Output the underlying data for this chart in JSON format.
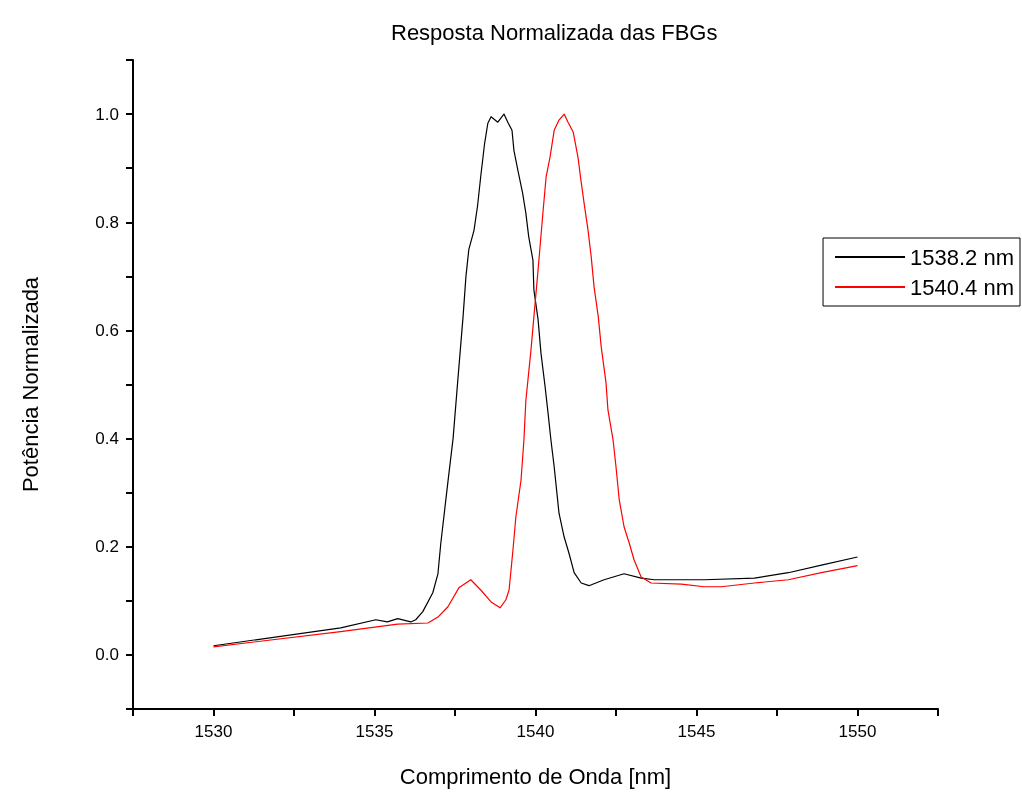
{
  "chart_data": {
    "type": "line",
    "title": "Resposta Normalizada das FBGs",
    "xlabel": "Comprimento de Onda [nm]",
    "ylabel": "Potência Normalizada",
    "xlim": [
      1527.5,
      1552.5
    ],
    "xticks": [
      {
        "value": 1527.5,
        "label": null
      },
      1530,
      {
        "value": 1532.5,
        "label": null
      },
      1535,
      {
        "value": 1537.5,
        "label": null
      },
      1540,
      {
        "value": 1542.5,
        "label": null
      },
      1545,
      {
        "value": 1547.5,
        "label": null
      },
      1550,
      {
        "value": 1552.5,
        "label": null
      }
    ],
    "ylim": [
      -0.1,
      1.1
    ],
    "yticks": [
      {
        "value": -0.1,
        "label": null
      },
      {
        "value": 0,
        "label": "0.0"
      },
      {
        "value": 0.1,
        "label": null
      },
      {
        "value": 0.2,
        "label": "0.2"
      },
      {
        "value": 0.3,
        "label": null
      },
      {
        "value": 0.4,
        "label": "0.4"
      },
      {
        "value": 0.5,
        "label": null
      },
      {
        "value": 0.6,
        "label": "0.6"
      },
      {
        "value": 0.7,
        "label": null
      },
      {
        "value": 0.8,
        "label": "0.8"
      },
      {
        "value": 0.9,
        "label": null
      },
      {
        "value": 1.0,
        "label": "1.0"
      },
      {
        "value": 1.1,
        "label": null
      }
    ],
    "grid": false,
    "legend": "right",
    "marker": "none",
    "line_style": "solid",
    "series": [
      {
        "name": "1538.2 nm",
        "color": "#000000",
        "x": [
          1530,
          1533.95,
          1535.04,
          1535.4,
          1535.72,
          1536.13,
          1536.28,
          1536.5,
          1536.81,
          1536.97,
          1537.06,
          1537.28,
          1537.44,
          1537.59,
          1537.75,
          1537.84,
          1537.93,
          1538.09,
          1538.2,
          1538.3,
          1538.42,
          1538.52,
          1538.62,
          1538.83,
          1539.02,
          1539.14,
          1539.27,
          1539.33,
          1539.45,
          1539.6,
          1539.7,
          1539.79,
          1539.92,
          1539.95,
          1540.08,
          1540.17,
          1540.3,
          1540.39,
          1540.48,
          1540.58,
          1540.73,
          1540.89,
          1541.04,
          1541.2,
          1541.42,
          1541.66,
          1542.13,
          1542.75,
          1543.28,
          1543.69,
          1545.24,
          1546.8,
          1547.85,
          1548.88,
          1550
        ],
        "values": [
          0.017,
          0.05,
          0.065,
          0.061,
          0.067,
          0.061,
          0.065,
          0.08,
          0.115,
          0.15,
          0.207,
          0.32,
          0.4,
          0.51,
          0.625,
          0.7,
          0.75,
          0.785,
          0.83,
          0.885,
          0.946,
          0.983,
          0.995,
          0.985,
          1.0,
          0.985,
          0.97,
          0.933,
          0.897,
          0.854,
          0.817,
          0.773,
          0.73,
          0.675,
          0.62,
          0.558,
          0.495,
          0.447,
          0.397,
          0.348,
          0.262,
          0.218,
          0.188,
          0.152,
          0.133,
          0.128,
          0.139,
          0.15,
          0.142,
          0.139,
          0.139,
          0.142,
          0.152,
          0.166,
          0.181
        ]
      },
      {
        "name": "1540.4 nm",
        "color": "#ff0000",
        "x": [
          1530,
          1533.95,
          1535.72,
          1536.66,
          1536.97,
          1537.28,
          1537.62,
          1537.99,
          1538.3,
          1538.62,
          1538.9,
          1539.08,
          1539.18,
          1539.3,
          1539.39,
          1539.55,
          1539.64,
          1539.7,
          1539.86,
          1539.95,
          1540.08,
          1540.23,
          1540.33,
          1540.45,
          1540.58,
          1540.73,
          1540.89,
          1541.01,
          1541.17,
          1541.32,
          1541.41,
          1541.51,
          1541.63,
          1541.73,
          1541.82,
          1541.95,
          1542.04,
          1542.19,
          1542.25,
          1542.41,
          1542.5,
          1542.6,
          1542.75,
          1542.91,
          1543.06,
          1543.28,
          1543.59,
          1544.53,
          1545.24,
          1545.77,
          1546.8,
          1547.85,
          1548.88,
          1550
        ],
        "values": [
          0.015,
          0.043,
          0.057,
          0.059,
          0.07,
          0.089,
          0.124,
          0.139,
          0.12,
          0.098,
          0.087,
          0.102,
          0.12,
          0.194,
          0.255,
          0.323,
          0.397,
          0.47,
          0.564,
          0.625,
          0.712,
          0.817,
          0.884,
          0.92,
          0.97,
          0.989,
          1.0,
          0.985,
          0.967,
          0.92,
          0.878,
          0.835,
          0.786,
          0.736,
          0.68,
          0.625,
          0.57,
          0.503,
          0.453,
          0.397,
          0.348,
          0.287,
          0.237,
          0.207,
          0.176,
          0.144,
          0.133,
          0.131,
          0.126,
          0.126,
          0.133,
          0.139,
          0.152,
          0.165
        ]
      }
    ]
  }
}
